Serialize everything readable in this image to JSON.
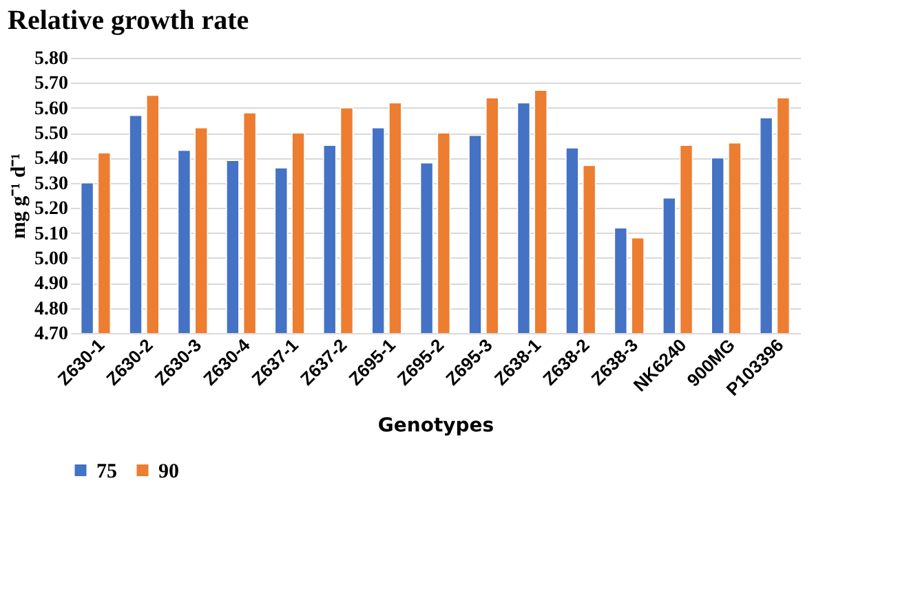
{
  "chart_data": {
    "type": "bar",
    "title": "Relative growth rate",
    "xlabel": "Genotypes",
    "ylabel": "mg g⁻¹ d⁻¹",
    "categories": [
      "Z630-1",
      "Z630-2",
      "Z630-3",
      "Z630-4",
      "Z637-1",
      "Z637-2",
      "Z695-1",
      "Z695-2",
      "Z695-3",
      "Z638-1",
      "Z638-2",
      "Z638-3",
      "NK6240",
      "900MG",
      "P103396"
    ],
    "series": [
      {
        "name": "75",
        "color": "#4472c4",
        "values": [
          5.3,
          5.57,
          5.43,
          5.39,
          5.36,
          5.45,
          5.52,
          5.38,
          5.49,
          5.62,
          5.44,
          5.12,
          5.24,
          5.4,
          5.56
        ]
      },
      {
        "name": "90",
        "color": "#ed7d31",
        "values": [
          5.42,
          5.65,
          5.52,
          5.58,
          5.5,
          5.6,
          5.62,
          5.5,
          5.64,
          5.67,
          5.37,
          5.08,
          5.45,
          5.46,
          5.64
        ]
      }
    ],
    "ylim": [
      4.7,
      5.8
    ],
    "yticks": [
      {
        "value": 4.7,
        "label": "4.70"
      },
      {
        "value": 4.8,
        "label": "4.80"
      },
      {
        "value": 4.9,
        "label": "4.90"
      },
      {
        "value": 5.0,
        "label": "5.00"
      },
      {
        "value": 5.1,
        "label": "5.10"
      },
      {
        "value": 5.2,
        "label": "5.20"
      },
      {
        "value": 5.3,
        "label": "5.30"
      },
      {
        "value": 5.4,
        "label": "5.40"
      },
      {
        "value": 5.5,
        "label": "5.50"
      },
      {
        "value": 5.6,
        "label": "5.60"
      },
      {
        "value": 5.7,
        "label": "5.70"
      },
      {
        "value": 5.8,
        "label": "5.80"
      }
    ],
    "grid": "y",
    "legend": "bottom"
  }
}
